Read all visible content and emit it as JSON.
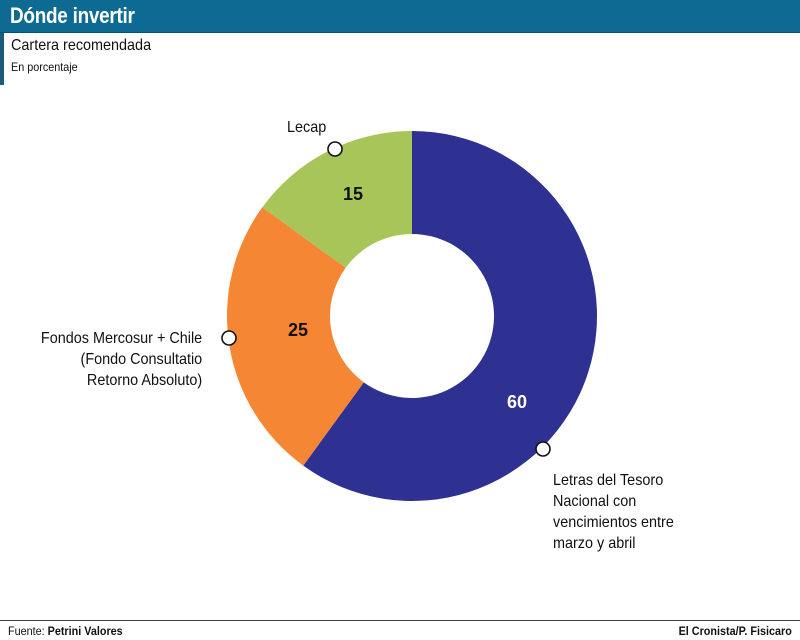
{
  "header": {
    "title": "Dónde invertir"
  },
  "subtitle": "Cartera recomendada",
  "unit_label": "En porcentaje",
  "footer": {
    "source_prefix": "Fuente: ",
    "source_name": "Petrini Valores",
    "credit": "El Cronista/P. Fisicaro"
  },
  "colors": {
    "header_bg": "#0d6b93",
    "letras": "#2e3192",
    "fondos": "#f58634",
    "lecap": "#a8c55a"
  },
  "chart_data": {
    "type": "pie",
    "variant": "donut",
    "title": "Cartera recomendada",
    "unit": "En porcentaje",
    "slices": [
      {
        "label": "Letras del Tesoro\nNacional con\nvencimientos entre\nmarzo y abril",
        "value": 60,
        "color": "#2e3192"
      },
      {
        "label": "Fondos Mercosur + Chile\n(Fondo Consultatio\nRetorno Absoluto)",
        "value": 25,
        "color": "#f58634"
      },
      {
        "label": "Lecap",
        "value": 15,
        "color": "#a8c55a"
      }
    ]
  }
}
